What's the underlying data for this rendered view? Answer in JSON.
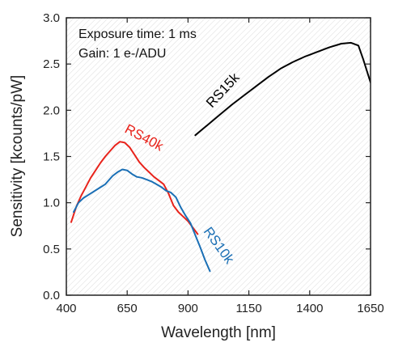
{
  "chart_data": {
    "type": "line",
    "xlabel": "Wavelength [nm]",
    "ylabel": "Sensitivity [kcounts/pW]",
    "xlim": [
      400,
      1650
    ],
    "ylim": [
      0.0,
      3.0
    ],
    "xticks": [
      400,
      650,
      900,
      1150,
      1400,
      1650
    ],
    "yticks": [
      0.0,
      0.5,
      1.0,
      1.5,
      2.0,
      2.5,
      3.0
    ],
    "xtick_labels": [
      "400",
      "650",
      "900",
      "1150",
      "1400",
      "1650"
    ],
    "ytick_labels": [
      "0.0",
      "0.5",
      "1.0",
      "1.5",
      "2.0",
      "2.5",
      "3.0"
    ],
    "grid": false,
    "background": "hatched",
    "annotations": [
      "Exposure time: 1 ms",
      "Gain: 1 e-/ADU"
    ],
    "series": [
      {
        "name": "RS15k",
        "color": "#000000",
        "x": [
          930,
          980,
          1030,
          1080,
          1130,
          1180,
          1230,
          1280,
          1330,
          1380,
          1430,
          1480,
          1530,
          1570,
          1600,
          1620,
          1650
        ],
        "y": [
          1.73,
          1.84,
          1.95,
          2.06,
          2.16,
          2.26,
          2.36,
          2.45,
          2.52,
          2.58,
          2.63,
          2.68,
          2.72,
          2.73,
          2.7,
          2.55,
          2.3
        ]
      },
      {
        "name": "RS40k",
        "color": "#e8231b",
        "x": [
          420,
          440,
          460,
          480,
          500,
          520,
          540,
          560,
          580,
          600,
          620,
          640,
          660,
          680,
          700,
          720,
          740,
          760,
          780,
          800,
          820,
          840,
          860,
          880,
          900,
          920,
          940
        ],
        "y": [
          0.79,
          0.95,
          1.07,
          1.17,
          1.27,
          1.35,
          1.43,
          1.5,
          1.56,
          1.62,
          1.66,
          1.65,
          1.6,
          1.52,
          1.44,
          1.38,
          1.33,
          1.28,
          1.24,
          1.2,
          1.1,
          0.97,
          0.9,
          0.85,
          0.8,
          0.73,
          0.66
        ]
      },
      {
        "name": "RS10k",
        "color": "#1a6fb5",
        "x": [
          430,
          450,
          470,
          500,
          530,
          560,
          590,
          610,
          630,
          650,
          670,
          690,
          710,
          730,
          750,
          770,
          790,
          810,
          830,
          850,
          870,
          890,
          910,
          930,
          950,
          970,
          990
        ],
        "y": [
          0.9,
          1.0,
          1.05,
          1.1,
          1.15,
          1.2,
          1.29,
          1.33,
          1.36,
          1.35,
          1.31,
          1.28,
          1.27,
          1.25,
          1.23,
          1.2,
          1.17,
          1.13,
          1.11,
          1.06,
          0.95,
          0.86,
          0.78,
          0.65,
          0.52,
          0.38,
          0.26
        ]
      }
    ]
  }
}
